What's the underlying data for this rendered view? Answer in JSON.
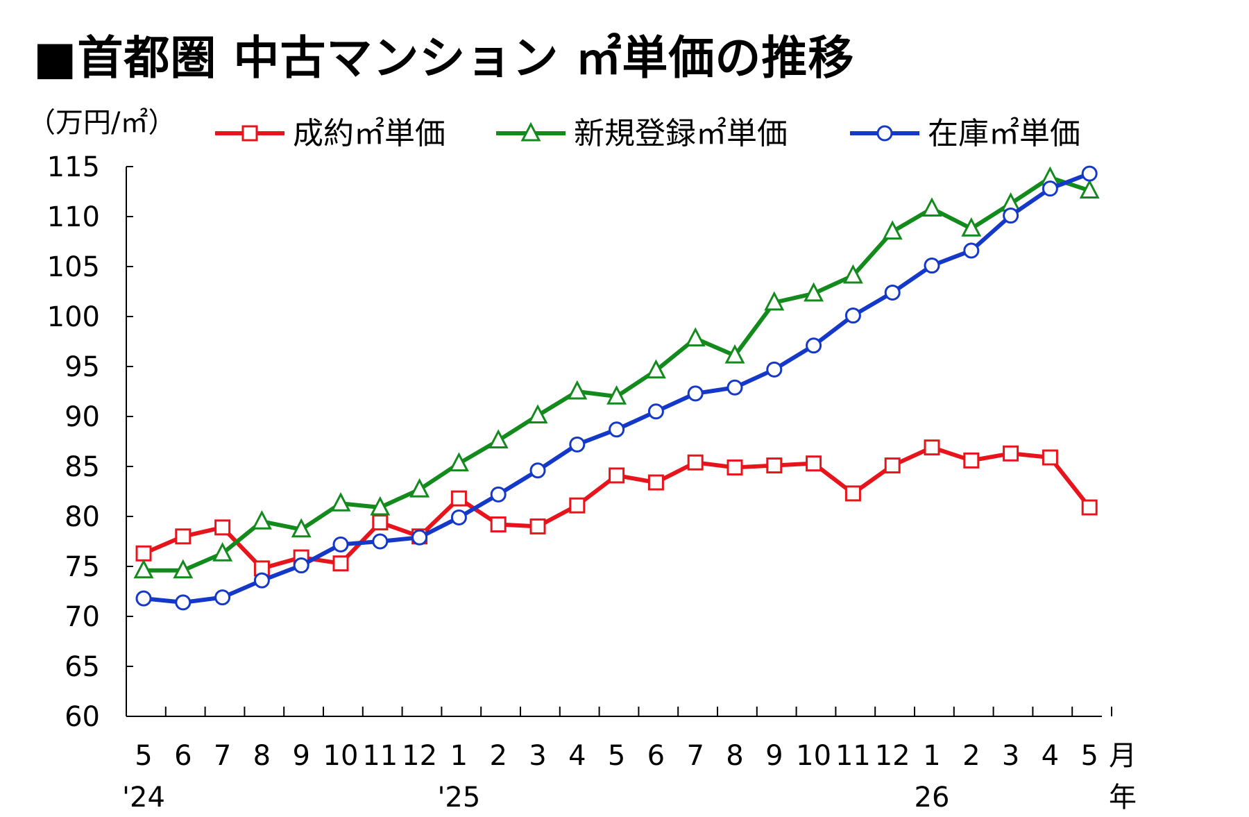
{
  "title": "■首都圏 中古マンション ㎡単価の推移",
  "chart_data": {
    "type": "line",
    "unit_label": "（万円/㎡）",
    "x_month_labels": [
      "5",
      "6",
      "7",
      "8",
      "9",
      "10",
      "11",
      "12",
      "1",
      "2",
      "3",
      "4",
      "5",
      "6",
      "7",
      "8",
      "9",
      "10",
      "11",
      "12",
      "1",
      "2",
      "3",
      "4",
      "5"
    ],
    "x_year_labels": [
      {
        "index": 0,
        "label": "'24"
      },
      {
        "index": 8,
        "label": "'25"
      },
      {
        "index": 20,
        "label": "26"
      }
    ],
    "x_axis_suffix_month": "月",
    "x_axis_suffix_year": "年",
    "ylim": [
      60,
      115
    ],
    "yticks": [
      60,
      65,
      70,
      75,
      80,
      85,
      90,
      95,
      100,
      105,
      110,
      115
    ],
    "series": [
      {
        "name": "成約㎡単価",
        "color": "#e8141c",
        "marker": "square",
        "values": [
          76.3,
          78.0,
          78.9,
          74.8,
          75.9,
          75.3,
          79.4,
          78.0,
          81.8,
          79.2,
          79.0,
          81.1,
          84.1,
          83.4,
          85.4,
          84.9,
          85.1,
          85.3,
          82.3,
          85.1,
          86.9,
          85.6,
          86.3,
          85.9,
          80.9
        ]
      },
      {
        "name": "新規登録㎡単価",
        "color": "#128a1c",
        "marker": "triangle",
        "values": [
          74.6,
          74.6,
          76.3,
          79.5,
          78.7,
          81.3,
          80.9,
          82.7,
          85.3,
          87.6,
          90.1,
          92.5,
          92.0,
          94.6,
          97.8,
          96.1,
          101.4,
          102.3,
          104.1,
          108.5,
          110.8,
          108.8,
          111.3,
          113.9,
          112.6
        ]
      },
      {
        "name": "在庫㎡単価",
        "color": "#1438c8",
        "marker": "circle",
        "values": [
          71.8,
          71.4,
          71.9,
          73.6,
          75.1,
          77.2,
          77.5,
          77.9,
          79.9,
          82.2,
          84.6,
          87.2,
          88.7,
          90.5,
          92.3,
          92.9,
          94.7,
          97.1,
          100.1,
          102.4,
          105.1,
          106.6,
          110.1,
          112.8,
          114.3
        ]
      }
    ],
    "legend_position": "top",
    "grid": false
  }
}
